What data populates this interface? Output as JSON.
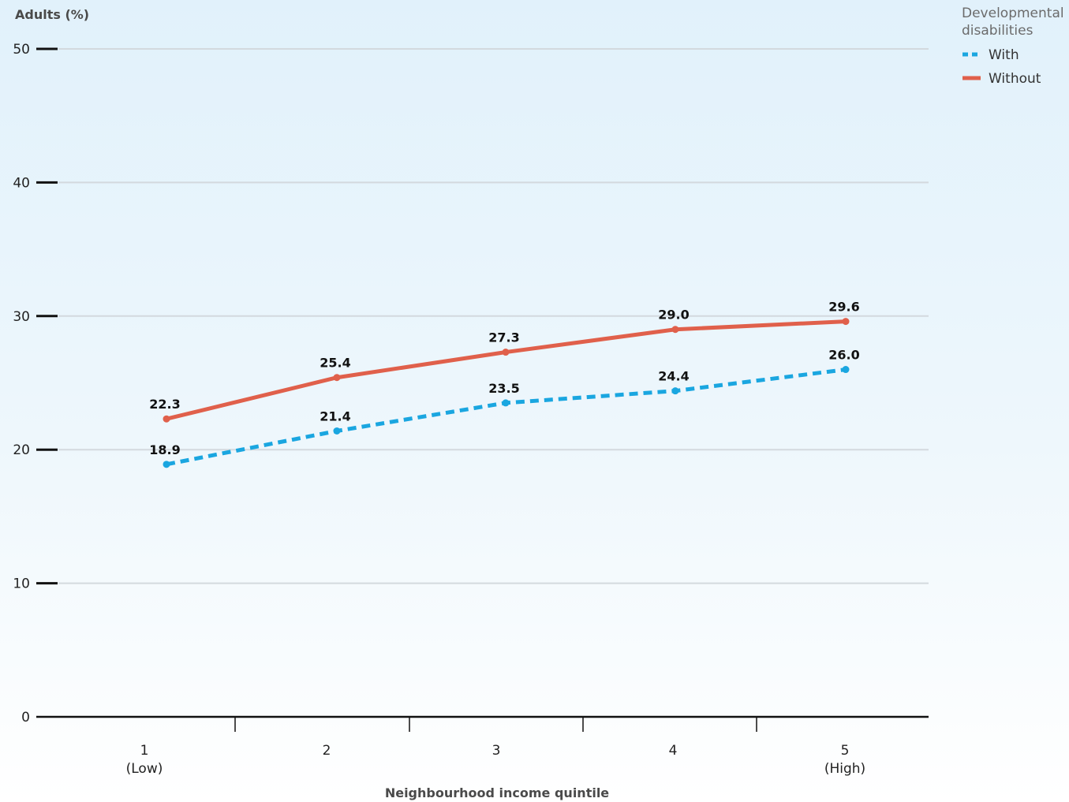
{
  "chart_data": {
    "type": "line",
    "ylabel": "Adults (%)",
    "xlabel": "Neighbourhood income quintile",
    "ylim": [
      0,
      50
    ],
    "yticks": [
      0,
      10,
      20,
      30,
      40,
      50
    ],
    "grid": true,
    "categories": [
      {
        "top": "1",
        "bottom": "(Low)"
      },
      {
        "top": "2",
        "bottom": ""
      },
      {
        "top": "3",
        "bottom": ""
      },
      {
        "top": "4",
        "bottom": ""
      },
      {
        "top": "5",
        "bottom": "(High)"
      }
    ],
    "legend": {
      "title_line1": "Developmental",
      "title_line2": "disabilities",
      "placement": "top-right"
    },
    "series": [
      {
        "name": "With",
        "values": [
          18.9,
          21.4,
          23.5,
          24.4,
          26.0
        ],
        "labels": [
          "18.9",
          "21.4",
          "23.5",
          "24.4",
          "26.0"
        ],
        "color": "#1aa6e0",
        "style": "dashed"
      },
      {
        "name": "Without",
        "values": [
          22.3,
          25.4,
          27.3,
          29.0,
          29.6
        ],
        "labels": [
          "22.3",
          "25.4",
          "27.3",
          "29.0",
          "29.6"
        ],
        "color": "#e0604b",
        "style": "solid"
      }
    ]
  }
}
